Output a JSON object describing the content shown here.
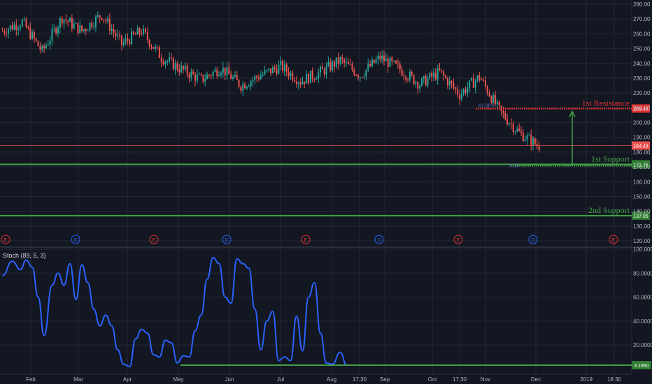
{
  "chart_data": [
    {
      "type": "candlestick",
      "title": "",
      "ylim": [
        115,
        282
      ],
      "y_ticks": [
        120,
        130,
        140,
        150,
        160,
        170,
        180,
        190,
        200,
        210,
        220,
        230,
        240,
        250,
        260,
        270,
        280
      ],
      "y_tick_labels": [
        "120.00",
        "130.00",
        "140.00",
        "150.00",
        "160.00",
        "170.00",
        "180.00",
        "190.00",
        "200.00",
        "210.00",
        "220.00",
        "230.00",
        "240.00",
        "250.00",
        "260.00",
        "270.00",
        "280.00"
      ],
      "x_tick_labels": [
        "Feb",
        "Mar",
        "Apr",
        "May",
        "Jun",
        "Jul",
        "Aug",
        "17:30",
        "Sep",
        "Oct",
        "17:30",
        "Nov",
        "Dec",
        "2019",
        "18:30"
      ],
      "close_anchors": [
        [
          0,
          262
        ],
        [
          10,
          268
        ],
        [
          20,
          248
        ],
        [
          30,
          271
        ],
        [
          40,
          262
        ],
        [
          50,
          273
        ],
        [
          60,
          253
        ],
        [
          70,
          262
        ],
        [
          80,
          244
        ],
        [
          90,
          236
        ],
        [
          100,
          229
        ],
        [
          110,
          237
        ],
        [
          120,
          225
        ],
        [
          130,
          232
        ],
        [
          140,
          238
        ],
        [
          150,
          228
        ],
        [
          160,
          234
        ],
        [
          170,
          242
        ],
        [
          180,
          232
        ],
        [
          190,
          244
        ],
        [
          200,
          236
        ],
        [
          210,
          226
        ],
        [
          220,
          234
        ],
        [
          230,
          219
        ],
        [
          240,
          231
        ],
        [
          250,
          208
        ],
        [
          260,
          193
        ],
        [
          270,
          184
        ]
      ],
      "current_price": 184.43,
      "current_price_label": "184.43",
      "fib_labels": [
        "61.80%",
        "0.00"
      ],
      "levels": [
        {
          "name": "1st Resistance",
          "value": 209.46,
          "label": "209.46",
          "color": "#e03131"
        },
        {
          "name": "1st Support",
          "value": 171.75,
          "label": "171.75",
          "color": "#43a047"
        },
        {
          "name": "2nd Support",
          "value": 137.05,
          "label": "137.05",
          "color": "#43a047"
        }
      ],
      "events": [
        "E",
        "D",
        "E",
        "D",
        "E",
        "D",
        "E",
        "D",
        "E"
      ],
      "event_colors": {
        "E": "#e03131",
        "D": "#2962ff"
      }
    },
    {
      "type": "line",
      "title": "Stoch (89, 5, 3)",
      "ylim": [
        0,
        100
      ],
      "y_tick_labels": [
        "100.0000",
        "80.0000",
        "60.0000",
        "40.0000",
        "20.0000"
      ],
      "y_ticks": [
        100,
        80,
        60,
        40,
        20
      ],
      "series": [
        {
          "points": [
            [
              0,
              78
            ],
            [
              5,
              90
            ],
            [
              9,
              83
            ],
            [
              12,
              91
            ],
            [
              15,
              85
            ],
            [
              18,
              60
            ],
            [
              21,
              28
            ],
            [
              25,
              70
            ],
            [
              28,
              80
            ],
            [
              31,
              70
            ],
            [
              34,
              88
            ],
            [
              37,
              58
            ],
            [
              40,
              87
            ],
            [
              43,
              72
            ],
            [
              46,
              50
            ],
            [
              49,
              36
            ],
            [
              52,
              45
            ],
            [
              55,
              36
            ],
            [
              58,
              16
            ],
            [
              61,
              4
            ],
            [
              64,
              2
            ],
            [
              67,
              25
            ],
            [
              70,
              33
            ],
            [
              73,
              30
            ],
            [
              76,
              12
            ],
            [
              79,
              10
            ],
            [
              82,
              24
            ],
            [
              85,
              22
            ],
            [
              88,
              5
            ],
            [
              91,
              11
            ],
            [
              94,
              10
            ],
            [
              97,
              32
            ],
            [
              100,
              45
            ],
            [
              103,
              75
            ],
            [
              106,
              93
            ],
            [
              109,
              88
            ],
            [
              112,
              60
            ],
            [
              115,
              55
            ],
            [
              118,
              92
            ],
            [
              121,
              88
            ],
            [
              124,
              84
            ],
            [
              127,
              50
            ],
            [
              130,
              16
            ],
            [
              133,
              40
            ],
            [
              136,
              48
            ],
            [
              139,
              7
            ],
            [
              142,
              10
            ],
            [
              145,
              7
            ],
            [
              148,
              44
            ],
            [
              151,
              15
            ],
            [
              154,
              60
            ],
            [
              157,
              72
            ],
            [
              160,
              30
            ],
            [
              163,
              5
            ],
            [
              166,
              4
            ],
            [
              170,
              14
            ],
            [
              173,
              4
            ]
          ]
        }
      ],
      "current_value": 3.195,
      "current_value_label": "3.1950"
    }
  ]
}
